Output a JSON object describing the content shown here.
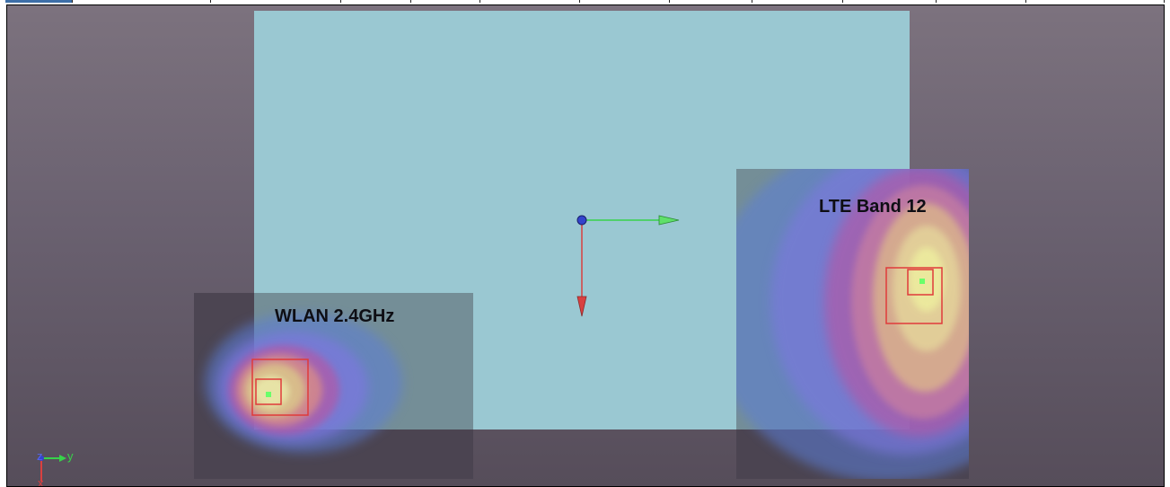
{
  "tabs": [
    {
      "label": "",
      "active": true
    },
    {
      "label": "",
      "active": false
    },
    {
      "label": "",
      "active": false
    },
    {
      "label": "",
      "active": false
    },
    {
      "label": "",
      "active": false
    },
    {
      "label": "",
      "active": false
    },
    {
      "label": "",
      "active": false
    },
    {
      "label": "",
      "active": false
    },
    {
      "label": "",
      "active": false
    },
    {
      "label": "",
      "active": false
    },
    {
      "label": "",
      "active": false
    },
    {
      "label": "",
      "active": false
    },
    {
      "label": "",
      "active": false
    }
  ],
  "viewport": {
    "background_top": "#7c727e",
    "background_bottom": "#564d5a",
    "board_color": "#9ac8d2"
  },
  "antennas": {
    "wlan": {
      "label": "WLAN 2.4GHz"
    },
    "lte": {
      "label": "LTE Band 12"
    }
  },
  "triad": {
    "y_label": "y",
    "z_label": "z",
    "x_label": "x"
  },
  "colors": {
    "x_axis": "#d94040",
    "y_axis": "#37d24a",
    "origin": "#3344cc",
    "probe_box": "#e03a3a",
    "probe_point": "#6aff6a"
  }
}
